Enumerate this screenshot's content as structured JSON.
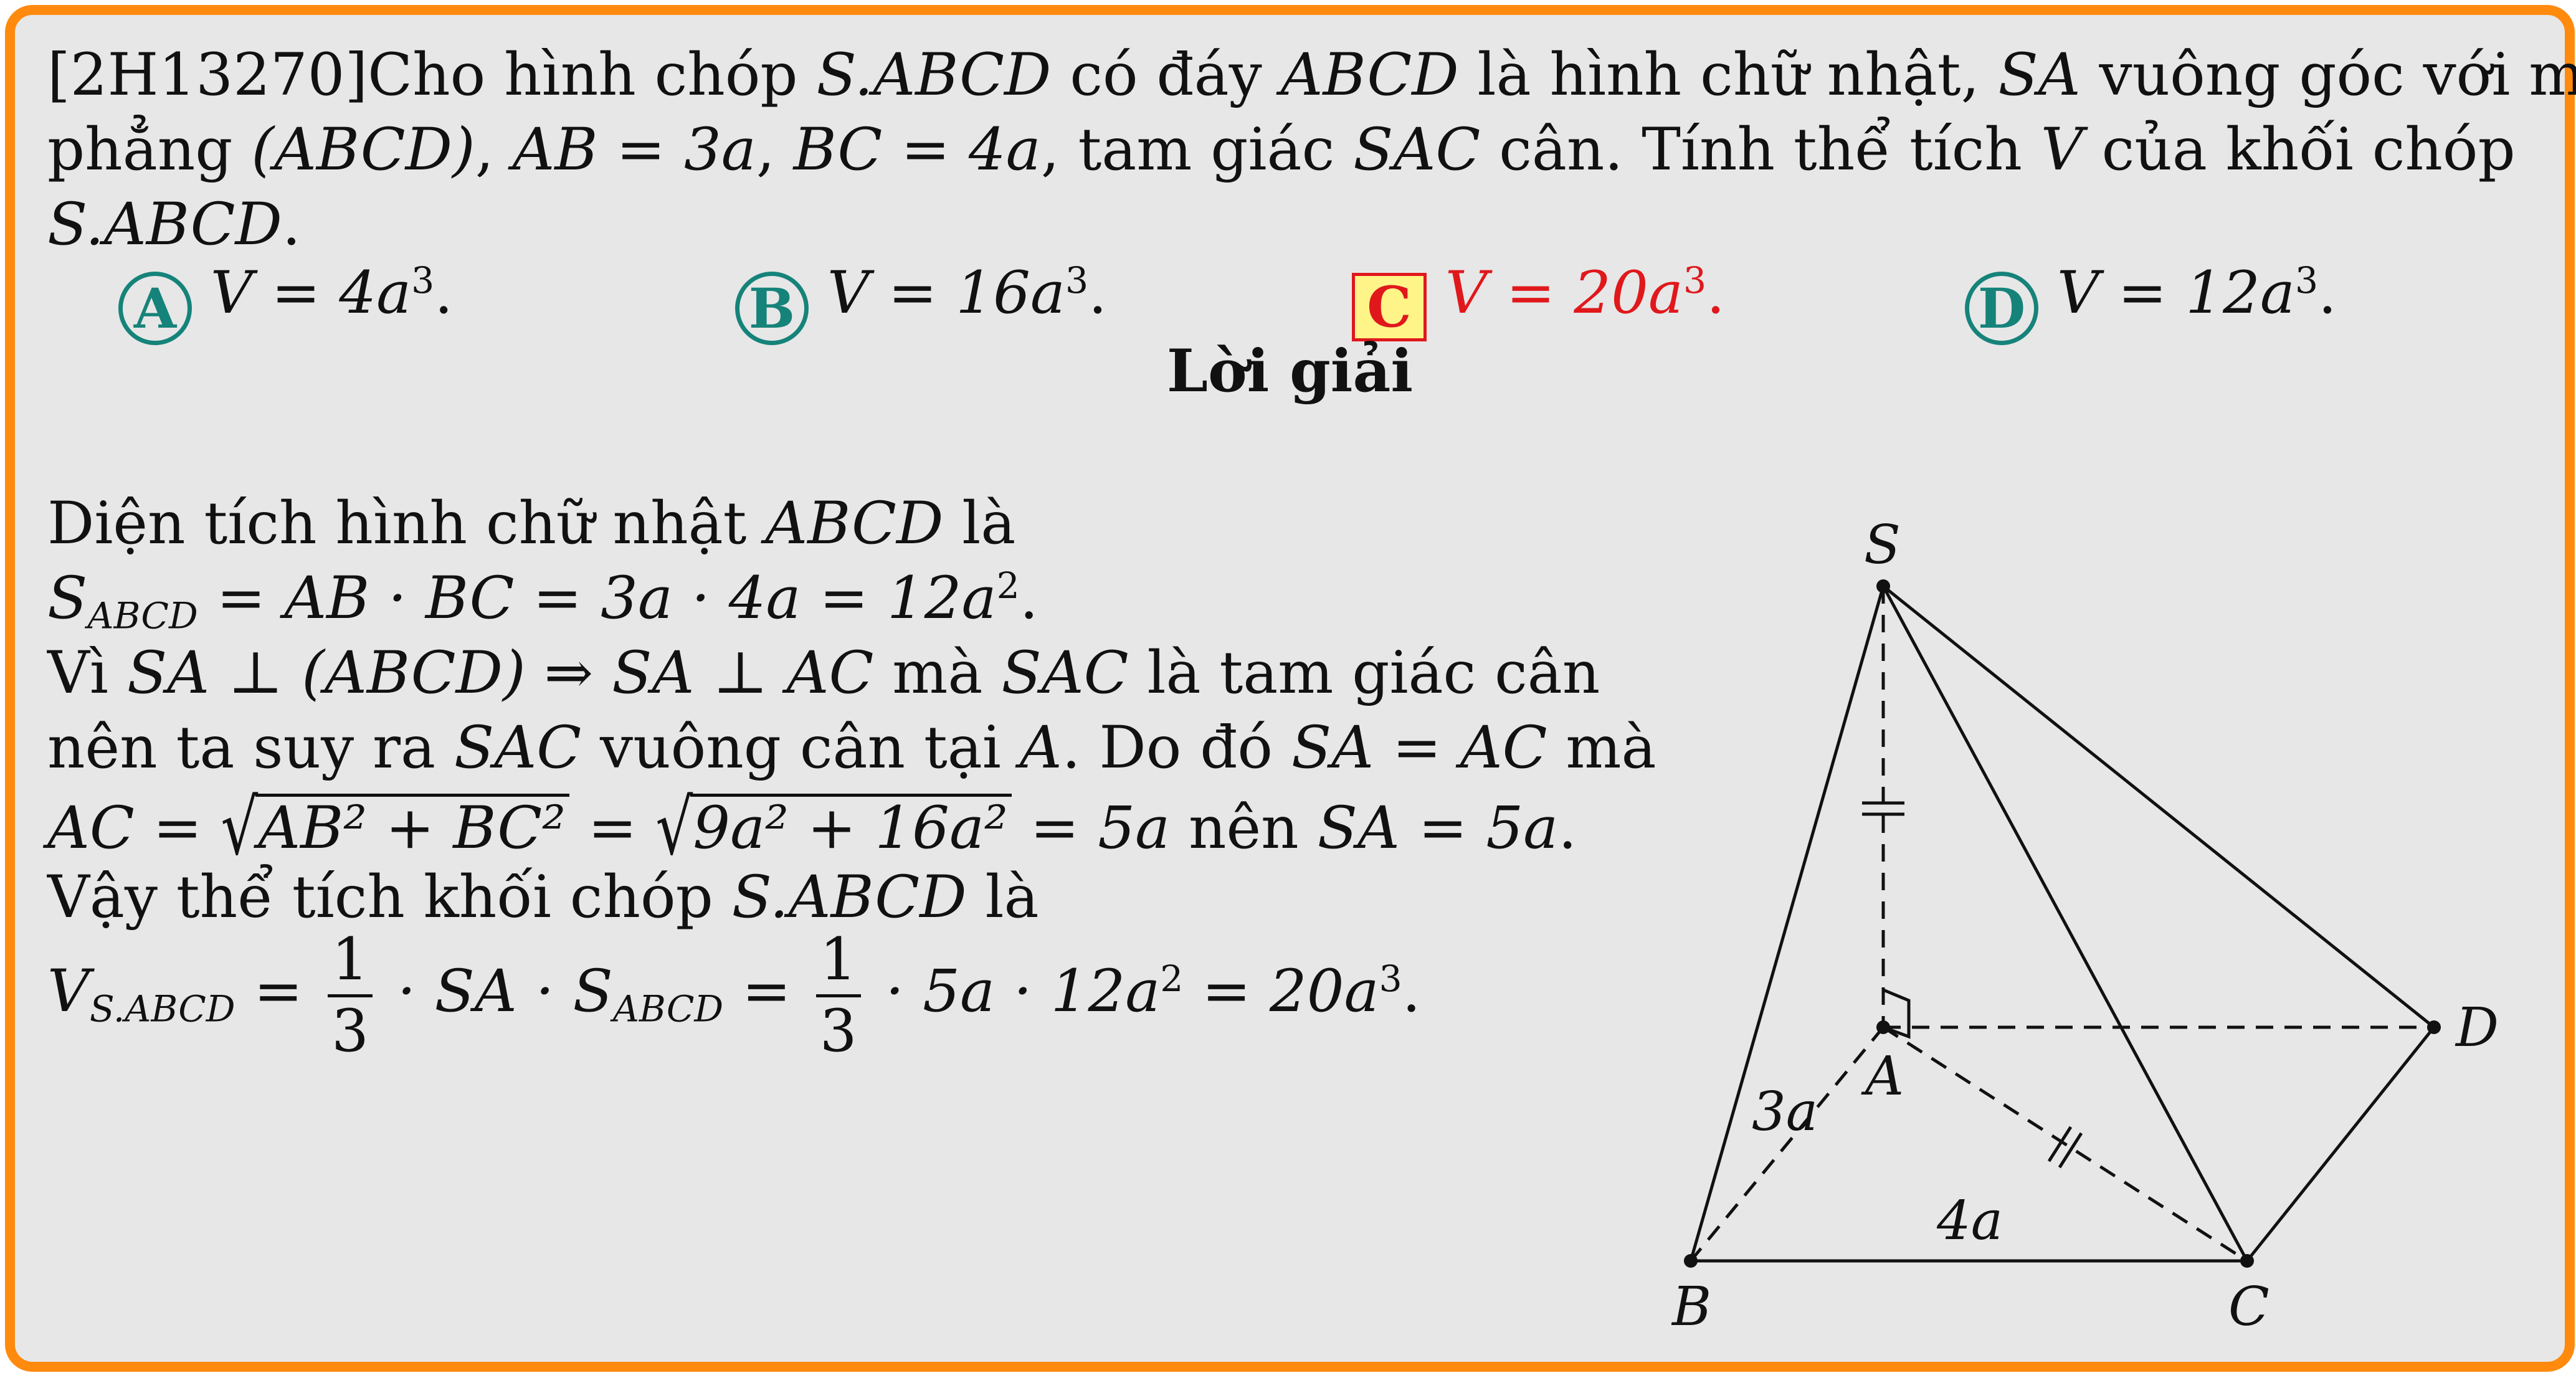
{
  "question": {
    "code": "[2H13270]",
    "line1_text": "Cho hình chóp",
    "line1_b": "có đáy",
    "line1_c": "là hình chữ nhật,",
    "line1_d": "vuông góc với mặt",
    "line2_a": "phẳng",
    "line2_b": "tam giác",
    "line2_c": "cân. Tính thể tích",
    "line2_d": "của khối chóp",
    "pyramid": "S.ABCD",
    "base": "ABCD",
    "edge": "SA",
    "plane": "(ABCD)",
    "ab": "AB = 3a",
    "bc": "BC = 4a",
    "tri": "SAC",
    "vol": "V"
  },
  "options": [
    {
      "letter": "A",
      "formula": "V = 4a",
      "exp": "3"
    },
    {
      "letter": "B",
      "formula": "V = 16a",
      "exp": "3"
    },
    {
      "letter": "C",
      "formula": "V = 20a",
      "exp": "3"
    },
    {
      "letter": "D",
      "formula": "V = 12a",
      "exp": "3"
    }
  ],
  "correct_option": "C",
  "solution": {
    "heading": "Lời giải",
    "l1_text": "Diện tích hình chữ nhật",
    "l1_math": "ABCD",
    "l1_end": "là",
    "l2_S": "S",
    "l2_sub": "ABCD",
    "l2_rest": "= AB · BC = 3a · 4a = 12a",
    "l2_exp": "2",
    "l3_a": "Vì",
    "l3_m1": "SA ⊥ (ABCD) ⇒ SA ⊥ AC",
    "l3_b": "mà",
    "l3_m2": "SAC",
    "l3_c": "là tam giác cân",
    "l4_a": "nên ta suy ra",
    "l4_m1": "SAC",
    "l4_b": "vuông cân tại",
    "l4_m2": "A",
    "l4_c": ". Do đó",
    "l4_m3": "SA = AC",
    "l4_d": "mà",
    "l5_ac": "AC =",
    "l5_r1": "AB² + BC²",
    "l5_eq": "=",
    "l5_r2": "9a² + 16a²",
    "l5_res": "= 5a",
    "l5_b": "nên",
    "l5_m": "SA = 5a",
    "l6_a": "Vậy thể tích khối chóp",
    "l6_m": "S.ABCD",
    "l6_b": "là",
    "l7_V": "V",
    "l7_sub": "S.ABCD",
    "l7_eq": "=",
    "l7_num": "1",
    "l7_den": "3",
    "l7_mid": "· SA · S",
    "l7_sub2": "ABCD",
    "l7_eq2": "=",
    "l7_rest": "· 5a · 12a",
    "l7_exp2": "2",
    "l7_res": "= 20a",
    "l7_exp3": "3"
  },
  "figure": {
    "vertex_labels": [
      "S",
      "A",
      "B",
      "C",
      "D"
    ],
    "edge_labels": [
      "3a",
      "4a"
    ]
  }
}
